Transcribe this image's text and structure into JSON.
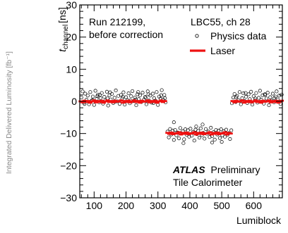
{
  "left_margin_label": "Integrated Delivered Luminosity [fb⁻¹]",
  "chart_data": {
    "type": "scatter",
    "xlabel": "Lumiblock",
    "ylabel": "t_channel [ns]",
    "ylabel_main": "t",
    "ylabel_sub": "channel",
    "ylabel_unit": "[ns]",
    "xlim": [
      55,
      690
    ],
    "ylim": [
      -30,
      30
    ],
    "x_ticks": [
      100,
      200,
      300,
      400,
      500,
      600
    ],
    "y_ticks": [
      -30,
      -20,
      -10,
      0,
      10,
      20,
      30
    ],
    "grid": false,
    "annotations": {
      "run_line1": "Run 212199,",
      "run_line2": "before correction",
      "channel": "LBC55, ch 28",
      "atlas": "ATLAS",
      "preliminary": "Preliminary",
      "detector": "Tile Calorimeter"
    },
    "legend": {
      "placement": "top-right",
      "physics_label": "Physics data",
      "laser_label": "Laser"
    },
    "colors": {
      "laser": "#ee1111",
      "physics": "#000000"
    },
    "series": [
      {
        "name": "Physics data",
        "points": [
          [
            60,
            1.2
          ],
          [
            64,
            3.1
          ],
          [
            68,
            -0.4
          ],
          [
            72,
            2.4
          ],
          [
            76,
            0.5
          ],
          [
            80,
            1.8
          ],
          [
            84,
            -0.9
          ],
          [
            88,
            2.9
          ],
          [
            92,
            0.2
          ],
          [
            96,
            1.5
          ],
          [
            100,
            -1.1
          ],
          [
            104,
            3.3
          ],
          [
            108,
            0.8
          ],
          [
            112,
            2.1
          ],
          [
            116,
            -0.3
          ],
          [
            120,
            1.0
          ],
          [
            124,
            2.6
          ],
          [
            128,
            -0.7
          ],
          [
            132,
            1.4
          ],
          [
            136,
            0.3
          ],
          [
            140,
            3.0
          ],
          [
            144,
            -1.3
          ],
          [
            148,
            1.9
          ],
          [
            152,
            0.6
          ],
          [
            156,
            2.3
          ],
          [
            160,
            -0.5
          ],
          [
            164,
            1.1
          ],
          [
            168,
            3.4
          ],
          [
            172,
            0.0
          ],
          [
            176,
            1.7
          ],
          [
            180,
            -0.8
          ],
          [
            184,
            2.0
          ],
          [
            188,
            0.9
          ],
          [
            192,
            2.8
          ],
          [
            196,
            -1.0
          ],
          [
            200,
            1.3
          ],
          [
            204,
            0.4
          ],
          [
            208,
            2.5
          ],
          [
            212,
            -0.6
          ],
          [
            216,
            1.6
          ],
          [
            220,
            3.2
          ],
          [
            224,
            0.1
          ],
          [
            228,
            1.2
          ],
          [
            232,
            -1.2
          ],
          [
            236,
            2.2
          ],
          [
            240,
            0.7
          ],
          [
            244,
            1.9
          ],
          [
            248,
            -0.2
          ],
          [
            252,
            2.7
          ],
          [
            256,
            0.5
          ],
          [
            260,
            1.4
          ],
          [
            264,
            -0.9
          ],
          [
            268,
            3.1
          ],
          [
            272,
            0.3
          ],
          [
            276,
            1.8
          ],
          [
            280,
            -0.4
          ],
          [
            284,
            2.4
          ],
          [
            288,
            1.0
          ],
          [
            292,
            0.2
          ],
          [
            296,
            2.9
          ],
          [
            300,
            -1.1
          ],
          [
            304,
            1.5
          ],
          [
            308,
            0.8
          ],
          [
            312,
            3.5
          ],
          [
            316,
            0.6
          ],
          [
            320,
            2.0
          ],
          [
            324,
            -0.3
          ],
          [
            70,
            -0.8
          ],
          [
            95,
            0.4
          ],
          [
            118,
            2.0
          ],
          [
            142,
            0.9
          ],
          [
            166,
            -0.1
          ],
          [
            190,
            1.4
          ],
          [
            214,
            0.3
          ],
          [
            238,
            2.9
          ],
          [
            262,
            1.1
          ],
          [
            286,
            -0.5
          ],
          [
            310,
            1.9
          ],
          [
            322,
            1.0
          ],
          [
            110,
            1.6
          ],
          [
            150,
            2.8
          ],
          [
            230,
            0.6
          ],
          [
            270,
            2.2
          ],
          [
            330,
            -9.4
          ],
          [
            334,
            -11.2
          ],
          [
            338,
            -8.6
          ],
          [
            342,
            -10.3
          ],
          [
            346,
            -9.1
          ],
          [
            350,
            -12.0
          ],
          [
            354,
            -8.9
          ],
          [
            358,
            -10.6
          ],
          [
            362,
            -9.7
          ],
          [
            366,
            -11.5
          ],
          [
            370,
            -8.3
          ],
          [
            374,
            -10.0
          ],
          [
            378,
            -9.3
          ],
          [
            382,
            -11.8
          ],
          [
            386,
            -8.7
          ],
          [
            390,
            -10.4
          ],
          [
            394,
            -9.0
          ],
          [
            398,
            -11.0
          ],
          [
            402,
            -8.5
          ],
          [
            406,
            -10.7
          ],
          [
            410,
            -9.5
          ],
          [
            414,
            -12.2
          ],
          [
            418,
            -8.8
          ],
          [
            422,
            -10.2
          ],
          [
            426,
            -9.2
          ],
          [
            430,
            -11.3
          ],
          [
            434,
            -8.4
          ],
          [
            438,
            -10.5
          ],
          [
            442,
            -9.8
          ],
          [
            446,
            -11.6
          ],
          [
            450,
            -8.6
          ],
          [
            454,
            -10.1
          ],
          [
            458,
            -9.4
          ],
          [
            462,
            -11.1
          ],
          [
            466,
            -8.2
          ],
          [
            470,
            -10.8
          ],
          [
            474,
            -9.6
          ],
          [
            478,
            -11.9
          ],
          [
            482,
            -8.9
          ],
          [
            486,
            -10.3
          ],
          [
            490,
            -9.1
          ],
          [
            494,
            -11.4
          ],
          [
            498,
            -8.7
          ],
          [
            502,
            -10.6
          ],
          [
            506,
            -9.3
          ],
          [
            510,
            -11.0
          ],
          [
            514,
            -8.8
          ],
          [
            518,
            -10.4
          ],
          [
            522,
            -9.9
          ],
          [
            526,
            -11.7
          ],
          [
            530,
            -9.0
          ],
          [
            350,
            -6.5
          ],
          [
            420,
            -7.8
          ],
          [
            470,
            -12.8
          ],
          [
            380,
            -13.0
          ],
          [
            440,
            -7.2
          ],
          [
            500,
            -12.6
          ],
          [
            532,
            -0.6
          ],
          [
            536,
            1.2
          ],
          [
            540,
            2.3
          ],
          [
            544,
            -0.2
          ],
          [
            548,
            1.7
          ],
          [
            552,
            0.4
          ],
          [
            556,
            2.9
          ],
          [
            560,
            -0.9
          ],
          [
            564,
            1.0
          ],
          [
            568,
            2.5
          ],
          [
            572,
            0.1
          ],
          [
            576,
            1.4
          ],
          [
            580,
            -0.5
          ],
          [
            584,
            2.2
          ],
          [
            588,
            0.7
          ],
          [
            592,
            3.0
          ],
          [
            596,
            -1.0
          ],
          [
            600,
            1.6
          ],
          [
            604,
            0.3
          ],
          [
            608,
            2.6
          ],
          [
            612,
            -0.4
          ],
          [
            616,
            1.1
          ],
          [
            620,
            3.3
          ],
          [
            624,
            0.5
          ],
          [
            628,
            1.9
          ],
          [
            632,
            -0.7
          ],
          [
            636,
            2.0
          ],
          [
            640,
            0.9
          ],
          [
            644,
            2.7
          ],
          [
            648,
            -1.2
          ],
          [
            652,
            1.3
          ],
          [
            656,
            0.2
          ],
          [
            660,
            2.4
          ],
          [
            664,
            -0.3
          ],
          [
            668,
            1.5
          ],
          [
            672,
            3.1
          ],
          [
            676,
            0.6
          ],
          [
            680,
            1.8
          ],
          [
            684,
            -0.8
          ],
          [
            688,
            2.1
          ],
          [
            545,
            1.3
          ],
          [
            575,
            2.6
          ],
          [
            605,
            0.9
          ],
          [
            635,
            2.2
          ],
          [
            665,
            1.0
          ]
        ]
      },
      {
        "name": "Laser",
        "points": [
          [
            58,
            0.0
          ],
          [
            64,
            -0.3
          ],
          [
            70,
            0.2
          ],
          [
            76,
            -0.2
          ],
          [
            82,
            0.1
          ],
          [
            88,
            -0.4
          ],
          [
            94,
            0.0
          ],
          [
            100,
            0.3
          ],
          [
            106,
            -0.3
          ],
          [
            112,
            0.1
          ],
          [
            118,
            -0.2
          ],
          [
            124,
            0.2
          ],
          [
            130,
            -0.4
          ],
          [
            136,
            0.0
          ],
          [
            142,
            0.3
          ],
          [
            148,
            -0.2
          ],
          [
            154,
            0.1
          ],
          [
            160,
            -0.3
          ],
          [
            166,
            0.2
          ],
          [
            172,
            -0.1
          ],
          [
            178,
            0.0
          ],
          [
            184,
            0.3
          ],
          [
            190,
            -0.4
          ],
          [
            196,
            0.1
          ],
          [
            202,
            -0.2
          ],
          [
            208,
            0.2
          ],
          [
            214,
            -0.3
          ],
          [
            220,
            0.0
          ],
          [
            226,
            0.3
          ],
          [
            232,
            -0.2
          ],
          [
            238,
            0.1
          ],
          [
            244,
            -0.4
          ],
          [
            250,
            0.2
          ],
          [
            256,
            -0.1
          ],
          [
            262,
            0.0
          ],
          [
            268,
            0.3
          ],
          [
            274,
            -0.3
          ],
          [
            280,
            0.1
          ],
          [
            286,
            -0.2
          ],
          [
            292,
            0.2
          ],
          [
            298,
            -0.4
          ],
          [
            304,
            0.0
          ],
          [
            310,
            0.3
          ],
          [
            316,
            -0.2
          ],
          [
            322,
            0.1
          ],
          [
            330,
            -9.8
          ],
          [
            336,
            -10.1
          ],
          [
            342,
            -9.7
          ],
          [
            348,
            -10.2
          ],
          [
            354,
            -9.9
          ],
          [
            360,
            -10.0
          ],
          [
            366,
            -9.6
          ],
          [
            372,
            -10.3
          ],
          [
            378,
            -9.8
          ],
          [
            384,
            -10.1
          ],
          [
            390,
            -9.7
          ],
          [
            396,
            -10.2
          ],
          [
            402,
            -9.9
          ],
          [
            408,
            -10.0
          ],
          [
            414,
            -9.6
          ],
          [
            420,
            -10.3
          ],
          [
            426,
            -9.8
          ],
          [
            432,
            -10.1
          ],
          [
            438,
            -9.7
          ],
          [
            444,
            -10.2
          ],
          [
            450,
            -9.9
          ],
          [
            456,
            -10.0
          ],
          [
            462,
            -9.6
          ],
          [
            468,
            -10.3
          ],
          [
            474,
            -9.8
          ],
          [
            480,
            -10.1
          ],
          [
            486,
            -9.7
          ],
          [
            492,
            -10.2
          ],
          [
            498,
            -9.9
          ],
          [
            504,
            -10.0
          ],
          [
            510,
            -9.6
          ],
          [
            516,
            -10.3
          ],
          [
            522,
            -9.8
          ],
          [
            528,
            -10.0
          ],
          [
            534,
            0.1
          ],
          [
            540,
            -0.3
          ],
          [
            546,
            0.2
          ],
          [
            552,
            -0.1
          ],
          [
            558,
            0.0
          ],
          [
            564,
            0.3
          ],
          [
            570,
            -0.4
          ],
          [
            576,
            0.1
          ],
          [
            582,
            -0.2
          ],
          [
            588,
            0.2
          ],
          [
            594,
            -0.3
          ],
          [
            600,
            0.0
          ],
          [
            606,
            0.3
          ],
          [
            612,
            -0.2
          ],
          [
            618,
            0.1
          ],
          [
            624,
            -0.4
          ],
          [
            630,
            0.2
          ],
          [
            636,
            -0.1
          ],
          [
            642,
            0.0
          ],
          [
            648,
            0.3
          ],
          [
            654,
            -0.3
          ],
          [
            660,
            0.1
          ],
          [
            666,
            -0.2
          ],
          [
            672,
            0.2
          ],
          [
            678,
            -0.4
          ],
          [
            684,
            0.0
          ],
          [
            688,
            0.2
          ]
        ]
      }
    ]
  }
}
